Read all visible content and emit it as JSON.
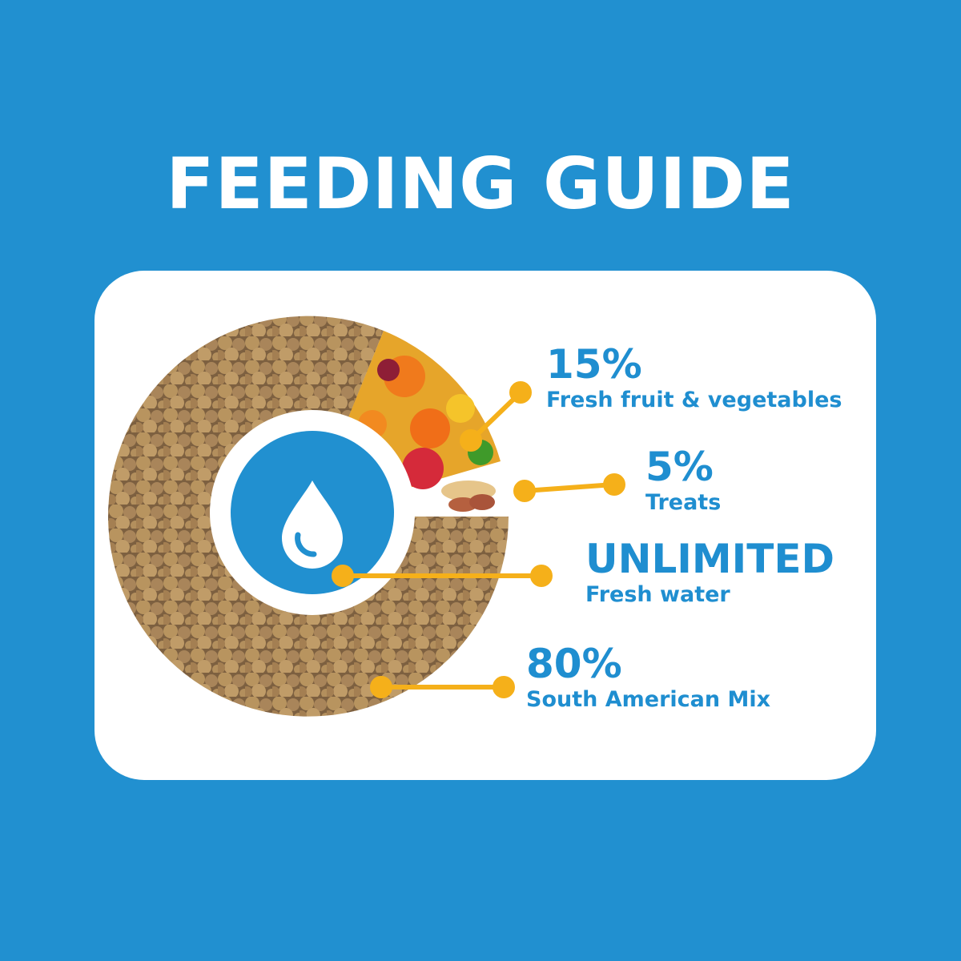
{
  "title": "FEEDING GUIDE",
  "colors": {
    "background": "#2190d0",
    "accent_text": "#1f8ed0",
    "connector": "#f5b01a",
    "card": "#ffffff"
  },
  "center_icon": "water-drop-icon",
  "segments": [
    {
      "value": "15%",
      "label": "Fresh fruit & vegetables",
      "image": "fruit-vegetables"
    },
    {
      "value": "5%",
      "label": "Treats",
      "image": "peanuts"
    },
    {
      "value": "UNLIMITED",
      "label": "Fresh water",
      "image": "water-drop"
    },
    {
      "value": "80%",
      "label": "South American Mix",
      "image": "kibble"
    }
  ]
}
